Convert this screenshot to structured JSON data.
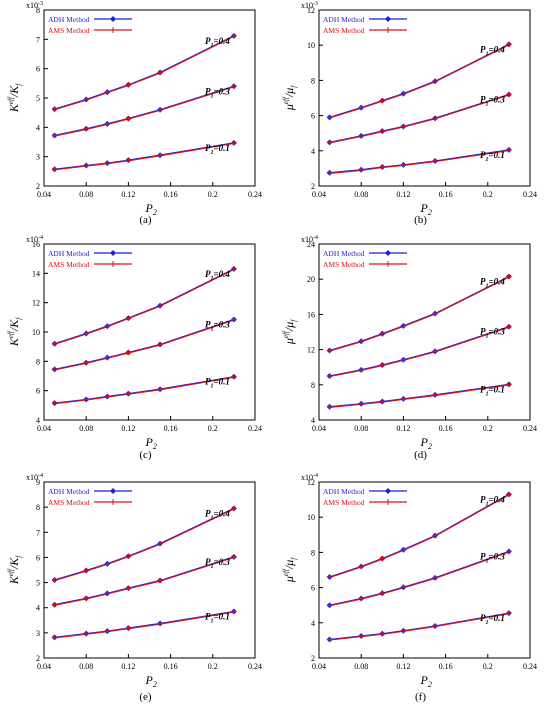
{
  "colors": {
    "adh": "#1f1fd6",
    "ams": "#e0101a",
    "axis": "#000000"
  },
  "legend_labels": {
    "adh": "ADH Method",
    "ams": "AMS Method"
  },
  "chart_data": [
    {
      "id": "a",
      "panel_label": "(a)",
      "type": "line",
      "xlabel_main": "P",
      "xlabel_sub": "2",
      "ylabel_main": "K",
      "ylabel_sup": "eff",
      "ylabel_rest": "/K",
      "ylabel_rest_sub": "f",
      "exponent_base": "x10",
      "exponent_power": "-3",
      "xlim": [
        0.04,
        0.24
      ],
      "ylim": [
        2,
        8
      ],
      "xticks": [
        "0.04",
        "0.08",
        "0.12",
        "0.16",
        "0.2",
        "0.24"
      ],
      "yticks": [
        "2",
        "3",
        "4",
        "5",
        "6",
        "7",
        "8"
      ],
      "grid": false,
      "legend": "top-left",
      "x": [
        0.05,
        0.08,
        0.1,
        0.12,
        0.15,
        0.22
      ],
      "groups": [
        {
          "label_main": "P",
          "label_sub": "1",
          "label_value": "=0.4",
          "adh": [
            4.62,
            4.95,
            5.2,
            5.45,
            5.87,
            7.12
          ],
          "ams": [
            4.62,
            4.95,
            5.2,
            5.45,
            5.87,
            7.12
          ]
        },
        {
          "label_main": "P",
          "label_sub": "1",
          "label_value": "=0.3",
          "adh": [
            3.72,
            3.95,
            4.12,
            4.3,
            4.6,
            5.4
          ],
          "ams": [
            3.72,
            3.95,
            4.12,
            4.3,
            4.6,
            5.4
          ]
        },
        {
          "label_main": "P",
          "label_sub": "1",
          "label_value": "=0.1",
          "adh": [
            2.57,
            2.7,
            2.78,
            2.88,
            3.05,
            3.47
          ],
          "ams": [
            2.57,
            2.7,
            2.78,
            2.88,
            3.05,
            3.47
          ]
        }
      ]
    },
    {
      "id": "b",
      "panel_label": "(b)",
      "type": "line",
      "xlabel_main": "P",
      "xlabel_sub": "2",
      "ylabel_main": "μ",
      "ylabel_sup": "eff",
      "ylabel_rest": "/μ",
      "ylabel_rest_sub": "f",
      "exponent_base": "x10",
      "exponent_power": "-3",
      "xlim": [
        0.04,
        0.24
      ],
      "ylim": [
        2,
        12
      ],
      "xticks": [
        "0.04",
        "0.08",
        "0.12",
        "0.16",
        "0.2",
        "0.24"
      ],
      "yticks": [
        "2",
        "4",
        "6",
        "8",
        "10",
        "12"
      ],
      "grid": false,
      "legend": "top-left",
      "x": [
        0.05,
        0.08,
        0.1,
        0.12,
        0.15,
        0.22
      ],
      "groups": [
        {
          "label_main": "P",
          "label_sub": "1",
          "label_value": "=0.4",
          "adh": [
            5.9,
            6.45,
            6.85,
            7.25,
            7.95,
            10.05
          ],
          "ams": [
            5.9,
            6.45,
            6.85,
            7.25,
            7.95,
            10.05
          ]
        },
        {
          "label_main": "P",
          "label_sub": "1",
          "label_value": "=0.3",
          "adh": [
            4.48,
            4.85,
            5.12,
            5.38,
            5.85,
            7.2
          ],
          "ams": [
            4.48,
            4.85,
            5.12,
            5.38,
            5.85,
            7.2
          ]
        },
        {
          "label_main": "P",
          "label_sub": "1",
          "label_value": "=0.1",
          "adh": [
            2.75,
            2.92,
            3.08,
            3.2,
            3.42,
            4.05
          ],
          "ams": [
            2.75,
            2.92,
            3.08,
            3.2,
            3.42,
            4.05
          ]
        }
      ]
    },
    {
      "id": "c",
      "panel_label": "(c)",
      "type": "line",
      "xlabel_main": "P",
      "xlabel_sub": "2",
      "ylabel_main": "K",
      "ylabel_sup": "eff",
      "ylabel_rest": "/K",
      "ylabel_rest_sub": "f",
      "exponent_base": "x10",
      "exponent_power": "-4",
      "xlim": [
        0.04,
        0.24
      ],
      "ylim": [
        4,
        16
      ],
      "xticks": [
        "0.04",
        "0.08",
        "0.12",
        "0.16",
        "0.2",
        "0.24"
      ],
      "yticks": [
        "4",
        "6",
        "8",
        "10",
        "12",
        "14",
        "16"
      ],
      "grid": false,
      "legend": "top-left",
      "x": [
        0.05,
        0.08,
        0.1,
        0.12,
        0.15,
        0.22
      ],
      "groups": [
        {
          "label_main": "P",
          "label_sub": "1",
          "label_value": "=0.4",
          "adh": [
            9.2,
            9.9,
            10.4,
            10.95,
            11.8,
            14.3
          ],
          "ams": [
            9.2,
            9.9,
            10.4,
            10.95,
            11.8,
            14.3
          ]
        },
        {
          "label_main": "P",
          "label_sub": "1",
          "label_value": "=0.3",
          "adh": [
            7.45,
            7.9,
            8.25,
            8.6,
            9.15,
            10.85
          ],
          "ams": [
            7.45,
            7.9,
            8.25,
            8.6,
            9.15,
            10.85
          ]
        },
        {
          "label_main": "P",
          "label_sub": "1",
          "label_value": "=0.1",
          "adh": [
            5.15,
            5.4,
            5.6,
            5.8,
            6.1,
            6.95
          ],
          "ams": [
            5.15,
            5.4,
            5.6,
            5.8,
            6.1,
            6.95
          ]
        }
      ]
    },
    {
      "id": "d",
      "panel_label": "(d)",
      "type": "line",
      "xlabel_main": "P",
      "xlabel_sub": "2",
      "ylabel_main": "μ",
      "ylabel_sup": "eff",
      "ylabel_rest": "/μ",
      "ylabel_rest_sub": "f",
      "exponent_base": "x10",
      "exponent_power": "-4",
      "xlim": [
        0.04,
        0.24
      ],
      "ylim": [
        4,
        24
      ],
      "xticks": [
        "0.04",
        "0.08",
        "0.12",
        "0.16",
        "0.2",
        "0.24"
      ],
      "yticks": [
        "4",
        "8",
        "12",
        "16",
        "20",
        "24"
      ],
      "grid": false,
      "legend": "top-left",
      "x": [
        0.05,
        0.08,
        0.1,
        0.12,
        0.15,
        0.22
      ],
      "groups": [
        {
          "label_main": "P",
          "label_sub": "1",
          "label_value": "=0.4",
          "adh": [
            11.9,
            12.95,
            13.8,
            14.7,
            16.1,
            20.3
          ],
          "ams": [
            11.9,
            12.95,
            13.8,
            14.7,
            16.1,
            20.3
          ]
        },
        {
          "label_main": "P",
          "label_sub": "1",
          "label_value": "=0.3",
          "adh": [
            9.0,
            9.7,
            10.25,
            10.85,
            11.8,
            14.6
          ],
          "ams": [
            9.0,
            9.7,
            10.25,
            10.85,
            11.8,
            14.6
          ]
        },
        {
          "label_main": "P",
          "label_sub": "1",
          "label_value": "=0.1",
          "adh": [
            5.5,
            5.85,
            6.1,
            6.4,
            6.85,
            8.05
          ],
          "ams": [
            5.5,
            5.85,
            6.1,
            6.4,
            6.85,
            8.05
          ]
        }
      ]
    },
    {
      "id": "e",
      "panel_label": "(e)",
      "type": "line",
      "xlabel_main": "P",
      "xlabel_sub": "2",
      "ylabel_main": "K",
      "ylabel_sup": "eff",
      "ylabel_rest": "/K",
      "ylabel_rest_sub": "f",
      "exponent_base": "x10",
      "exponent_power": "-4",
      "xlim": [
        0.04,
        0.24
      ],
      "ylim": [
        2,
        9
      ],
      "xticks": [
        "0.04",
        "0.08",
        "0.12",
        "0.16",
        "0.2",
        "0.24"
      ],
      "yticks": [
        "2",
        "3",
        "4",
        "5",
        "6",
        "7",
        "8",
        "9"
      ],
      "grid": false,
      "legend": "top-left",
      "x": [
        0.05,
        0.08,
        0.1,
        0.12,
        0.15,
        0.22
      ],
      "groups": [
        {
          "label_main": "P",
          "label_sub": "1",
          "label_value": "=0.4",
          "adh": [
            5.1,
            5.48,
            5.75,
            6.05,
            6.55,
            7.95
          ],
          "ams": [
            5.1,
            5.48,
            5.75,
            6.05,
            6.55,
            7.95
          ]
        },
        {
          "label_main": "P",
          "label_sub": "1",
          "label_value": "=0.3",
          "adh": [
            4.12,
            4.37,
            4.57,
            4.78,
            5.08,
            6.02
          ],
          "ams": [
            4.12,
            4.37,
            4.57,
            4.78,
            5.08,
            6.02
          ]
        },
        {
          "label_main": "P",
          "label_sub": "1",
          "label_value": "=0.1",
          "adh": [
            2.82,
            2.97,
            3.07,
            3.19,
            3.37,
            3.85
          ],
          "ams": [
            2.82,
            2.97,
            3.07,
            3.19,
            3.37,
            3.85
          ]
        }
      ]
    },
    {
      "id": "f",
      "panel_label": "(f)",
      "type": "line",
      "xlabel_main": "P",
      "xlabel_sub": "2",
      "ylabel_main": "μ",
      "ylabel_sup": "eff",
      "ylabel_rest": "/μ",
      "ylabel_rest_sub": "f",
      "exponent_base": "x10",
      "exponent_power": "-4",
      "xlim": [
        0.04,
        0.24
      ],
      "ylim": [
        2,
        12
      ],
      "xticks": [
        "0.04",
        "0.08",
        "0.12",
        "0.16",
        "0.2",
        "0.24"
      ],
      "yticks": [
        "2",
        "4",
        "6",
        "8",
        "10",
        "12"
      ],
      "grid": false,
      "legend": "top-left",
      "x": [
        0.05,
        0.08,
        0.1,
        0.12,
        0.15,
        0.22
      ],
      "groups": [
        {
          "label_main": "P",
          "label_sub": "1",
          "label_value": "=0.4",
          "adh": [
            6.6,
            7.2,
            7.65,
            8.15,
            8.95,
            11.3
          ],
          "ams": [
            6.6,
            7.2,
            7.65,
            8.15,
            8.95,
            11.3
          ]
        },
        {
          "label_main": "P",
          "label_sub": "1",
          "label_value": "=0.3",
          "adh": [
            5.0,
            5.38,
            5.68,
            6.02,
            6.55,
            8.05
          ],
          "ams": [
            5.0,
            5.38,
            5.68,
            6.02,
            6.55,
            8.05
          ]
        },
        {
          "label_main": "P",
          "label_sub": "1",
          "label_value": "=0.1",
          "adh": [
            3.05,
            3.25,
            3.38,
            3.55,
            3.82,
            4.55
          ],
          "ams": [
            3.05,
            3.25,
            3.38,
            3.55,
            3.82,
            4.55
          ]
        }
      ]
    }
  ]
}
